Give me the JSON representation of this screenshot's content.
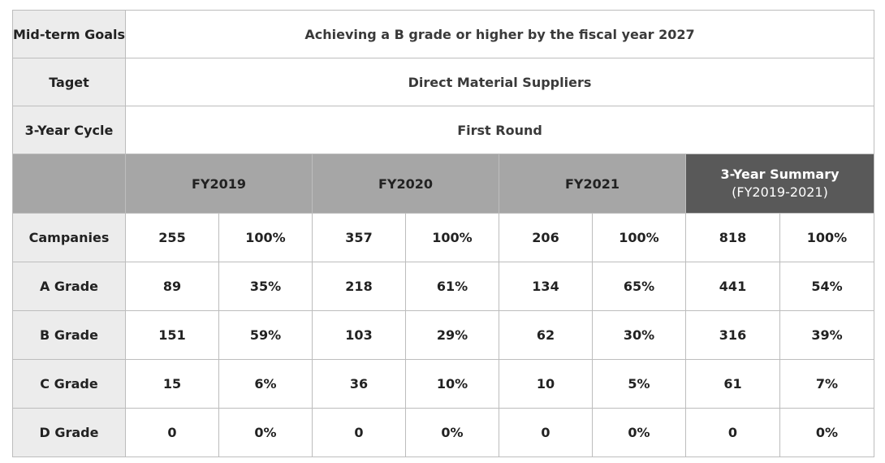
{
  "info": [
    {
      "label": "Mid-term Goals",
      "value": "Achieving a B grade or higher by the fiscal year 2027"
    },
    {
      "label": "Taget",
      "value": "Direct Material Suppliers"
    },
    {
      "label": "3-Year Cycle",
      "value": "First Round"
    }
  ],
  "years": [
    "FY2019",
    "FY2020",
    "FY2021"
  ],
  "summary": {
    "title": "3-Year  Summary",
    "subtitle": "(FY2019-2021)"
  },
  "rows": [
    {
      "label": "Campanies",
      "cells": [
        "255",
        "100%",
        "357",
        "100%",
        "206",
        "100%",
        "818",
        "100%"
      ]
    },
    {
      "label": "A Grade",
      "cells": [
        "89",
        "35%",
        "218",
        "61%",
        "134",
        "65%",
        "441",
        "54%"
      ]
    },
    {
      "label": "B Grade",
      "cells": [
        "151",
        "59%",
        "103",
        "29%",
        "62",
        "30%",
        "316",
        "39%"
      ]
    },
    {
      "label": "C Grade",
      "cells": [
        "15",
        "6%",
        "36",
        "10%",
        "10",
        "5%",
        "61",
        "7%"
      ]
    },
    {
      "label": "D Grade",
      "cells": [
        "0",
        "0%",
        "0",
        "0%",
        "0",
        "0%",
        "0",
        "0%"
      ]
    }
  ],
  "colors": {
    "label_bg": "#ececec",
    "year_header_bg": "#a6a6a6",
    "summary_header_bg": "#595959",
    "border": "#bdbdbd"
  }
}
